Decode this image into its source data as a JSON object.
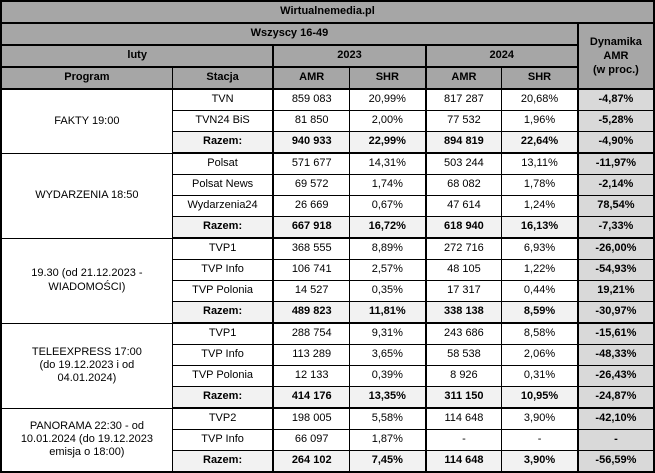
{
  "colors": {
    "header_bg": "#a6a6a6",
    "total_row_bg": "#f2f2f2",
    "dynamics_col_bg": "#d9d9d9",
    "border": "#000000",
    "cell_bg": "#ffffff",
    "text": "#000000"
  },
  "chart_data": {
    "type": "table",
    "title": "Wirtualnemedia.pl",
    "subtitle": "Wszyscy 16-49",
    "period": "luty",
    "years": [
      "2023",
      "2024"
    ],
    "col_program": "Program",
    "col_station": "Stacja",
    "col_amr": "AMR",
    "col_shr": "SHR",
    "dynamics_header": "Dynamika\nAMR\n(w proc.)",
    "groups": [
      {
        "program": "FAKTY 19:00",
        "rows": [
          {
            "station": "TVN",
            "amr_2023": "859 083",
            "shr_2023": "20,99%",
            "amr_2024": "817 287",
            "shr_2024": "20,68%",
            "dynamics": "-4,87%"
          },
          {
            "station": "TVN24 BiS",
            "amr_2023": "81 850",
            "shr_2023": "2,00%",
            "amr_2024": "77 532",
            "shr_2024": "1,96%",
            "dynamics": "-5,28%"
          }
        ],
        "total": {
          "station": "Razem:",
          "amr_2023": "940 933",
          "shr_2023": "22,99%",
          "amr_2024": "894 819",
          "shr_2024": "22,64%",
          "dynamics": "-4,90%"
        }
      },
      {
        "program": "WYDARZENIA 18:50",
        "rows": [
          {
            "station": "Polsat",
            "amr_2023": "571 677",
            "shr_2023": "14,31%",
            "amr_2024": "503 244",
            "shr_2024": "13,11%",
            "dynamics": "-11,97%"
          },
          {
            "station": "Polsat News",
            "amr_2023": "69 572",
            "shr_2023": "1,74%",
            "amr_2024": "68 082",
            "shr_2024": "1,78%",
            "dynamics": "-2,14%"
          },
          {
            "station": "Wydarzenia24",
            "amr_2023": "26 669",
            "shr_2023": "0,67%",
            "amr_2024": "47 614",
            "shr_2024": "1,24%",
            "dynamics": "78,54%"
          }
        ],
        "total": {
          "station": "Razem:",
          "amr_2023": "667 918",
          "shr_2023": "16,72%",
          "amr_2024": "618 940",
          "shr_2024": "16,13%",
          "dynamics": "-7,33%"
        }
      },
      {
        "program": "19.30 (od 21.12.2023 -\nWIADOMOŚCI)",
        "rows": [
          {
            "station": "TVP1",
            "amr_2023": "368 555",
            "shr_2023": "8,89%",
            "amr_2024": "272 716",
            "shr_2024": "6,93%",
            "dynamics": "-26,00%"
          },
          {
            "station": "TVP Info",
            "amr_2023": "106 741",
            "shr_2023": "2,57%",
            "amr_2024": "48 105",
            "shr_2024": "1,22%",
            "dynamics": "-54,93%"
          },
          {
            "station": "TVP Polonia",
            "amr_2023": "14 527",
            "shr_2023": "0,35%",
            "amr_2024": "17 317",
            "shr_2024": "0,44%",
            "dynamics": "19,21%"
          }
        ],
        "total": {
          "station": "Razem:",
          "amr_2023": "489 823",
          "shr_2023": "11,81%",
          "amr_2024": "338 138",
          "shr_2024": "8,59%",
          "dynamics": "-30,97%"
        }
      },
      {
        "program": "TELEEXPRESS 17:00\n(do 19.12.2023 i od\n04.01.2024)",
        "rows": [
          {
            "station": "TVP1",
            "amr_2023": "288 754",
            "shr_2023": "9,31%",
            "amr_2024": "243 686",
            "shr_2024": "8,58%",
            "dynamics": "-15,61%"
          },
          {
            "station": "TVP Info",
            "amr_2023": "113 289",
            "shr_2023": "3,65%",
            "amr_2024": "58 538",
            "shr_2024": "2,06%",
            "dynamics": "-48,33%"
          },
          {
            "station": "TVP Polonia",
            "amr_2023": "12 133",
            "shr_2023": "0,39%",
            "amr_2024": "8 926",
            "shr_2024": "0,31%",
            "dynamics": "-26,43%"
          }
        ],
        "total": {
          "station": "Razem:",
          "amr_2023": "414 176",
          "shr_2023": "13,35%",
          "amr_2024": "311 150",
          "shr_2024": "10,95%",
          "dynamics": "-24,87%"
        }
      },
      {
        "program": "PANORAMA 22:30 - od\n10.01.2024 (do 19.12.2023\nemisja o 18:00)",
        "rows": [
          {
            "station": "TVP2",
            "amr_2023": "198 005",
            "shr_2023": "5,58%",
            "amr_2024": "114 648",
            "shr_2024": "3,90%",
            "dynamics": "-42,10%"
          },
          {
            "station": "TVP Info",
            "amr_2023": "66 097",
            "shr_2023": "1,87%",
            "amr_2024": "-",
            "shr_2024": "-",
            "dynamics": "-"
          }
        ],
        "total": {
          "station": "Razem:",
          "amr_2023": "264 102",
          "shr_2023": "7,45%",
          "amr_2024": "114 648",
          "shr_2024": "3,90%",
          "dynamics": "-56,59%"
        }
      }
    ]
  }
}
